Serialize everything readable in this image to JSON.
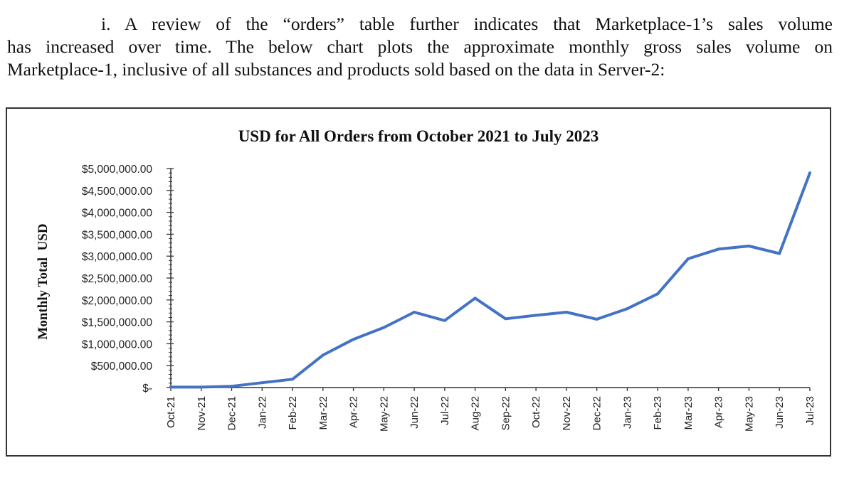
{
  "paragraph": {
    "marker": "i.",
    "line1": "A review of the “orders” table further indicates that Marketplace-1’s sales volume",
    "line2": "has increased over time. The below chart plots the approximate monthly gross sales volume on",
    "line3": "Marketplace-1, inclusive of all substances and products sold based on the data in Server-2:"
  },
  "chart_data": {
    "type": "line",
    "title": "USD for All Orders from October 2021 to July 2023",
    "xlabel": "",
    "ylabel": "Monthly Total  USD",
    "categories": [
      "Oct-21",
      "Nov-21",
      "Dec-21",
      "Jan-22",
      "Feb-22",
      "Mar-22",
      "Apr-22",
      "May-22",
      "Jun-22",
      "Jul-22",
      "Aug-22",
      "Sep-22",
      "Oct-22",
      "Nov-22",
      "Dec-22",
      "Jan-23",
      "Feb-23",
      "Mar-23",
      "Apr-23",
      "May-23",
      "Jun-23",
      "Jul-23"
    ],
    "series": [
      {
        "values": [
          10000,
          10000,
          30000,
          110000,
          190000,
          740000,
          1100000,
          1370000,
          1720000,
          1530000,
          2040000,
          1570000,
          1650000,
          1720000,
          1560000,
          1800000,
          2140000,
          2940000,
          3160000,
          3230000,
          3060000,
          4900000
        ],
        "color": "#4472C4"
      }
    ],
    "yticks": [
      "$-",
      "$500,000.00",
      "$1,000,000.00",
      "$1,500,000.00",
      "$2,000,000.00",
      "$2,500,000.00",
      "$3,000,000.00",
      "$3,500,000.00",
      "$4,000,000.00",
      "$4,500,000.00",
      "$5,000,000.00"
    ],
    "ylim": [
      0,
      5000000
    ],
    "ystep": 500000,
    "minor_ticks_per_major": 5,
    "grid": false,
    "legend": "none"
  }
}
